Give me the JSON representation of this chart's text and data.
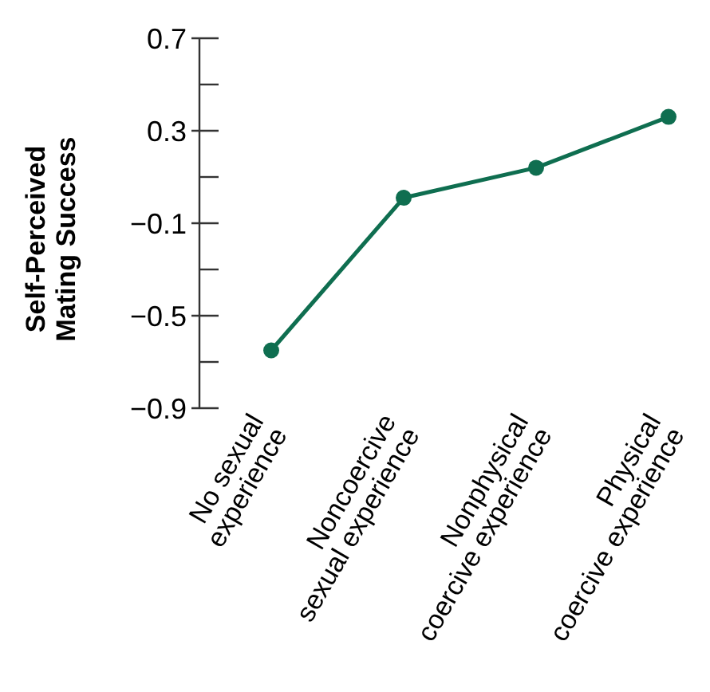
{
  "chart_data": {
    "type": "line",
    "ylabel": "Self-Perceived\nMating Success",
    "categories": [
      "No sexual\nexperience",
      "Noncoercive\nsexual experience",
      "Nonphysical\ncoercive experience",
      "Physical\ncoercive experience"
    ],
    "series": [
      {
        "color": "#0f6e50",
        "values": [
          -0.65,
          0.01,
          0.14,
          0.36
        ]
      }
    ],
    "ylim": [
      -0.9,
      0.7
    ],
    "yticks": [
      -0.9,
      {
        "value": -0.7,
        "label": null
      },
      -0.5,
      {
        "value": -0.3,
        "label": null
      },
      -0.1,
      {
        "value": 0.1,
        "label": null
      },
      0.3,
      {
        "value": 0.5,
        "label": null
      },
      0.7
    ],
    "marker": "circle",
    "grid": false
  }
}
